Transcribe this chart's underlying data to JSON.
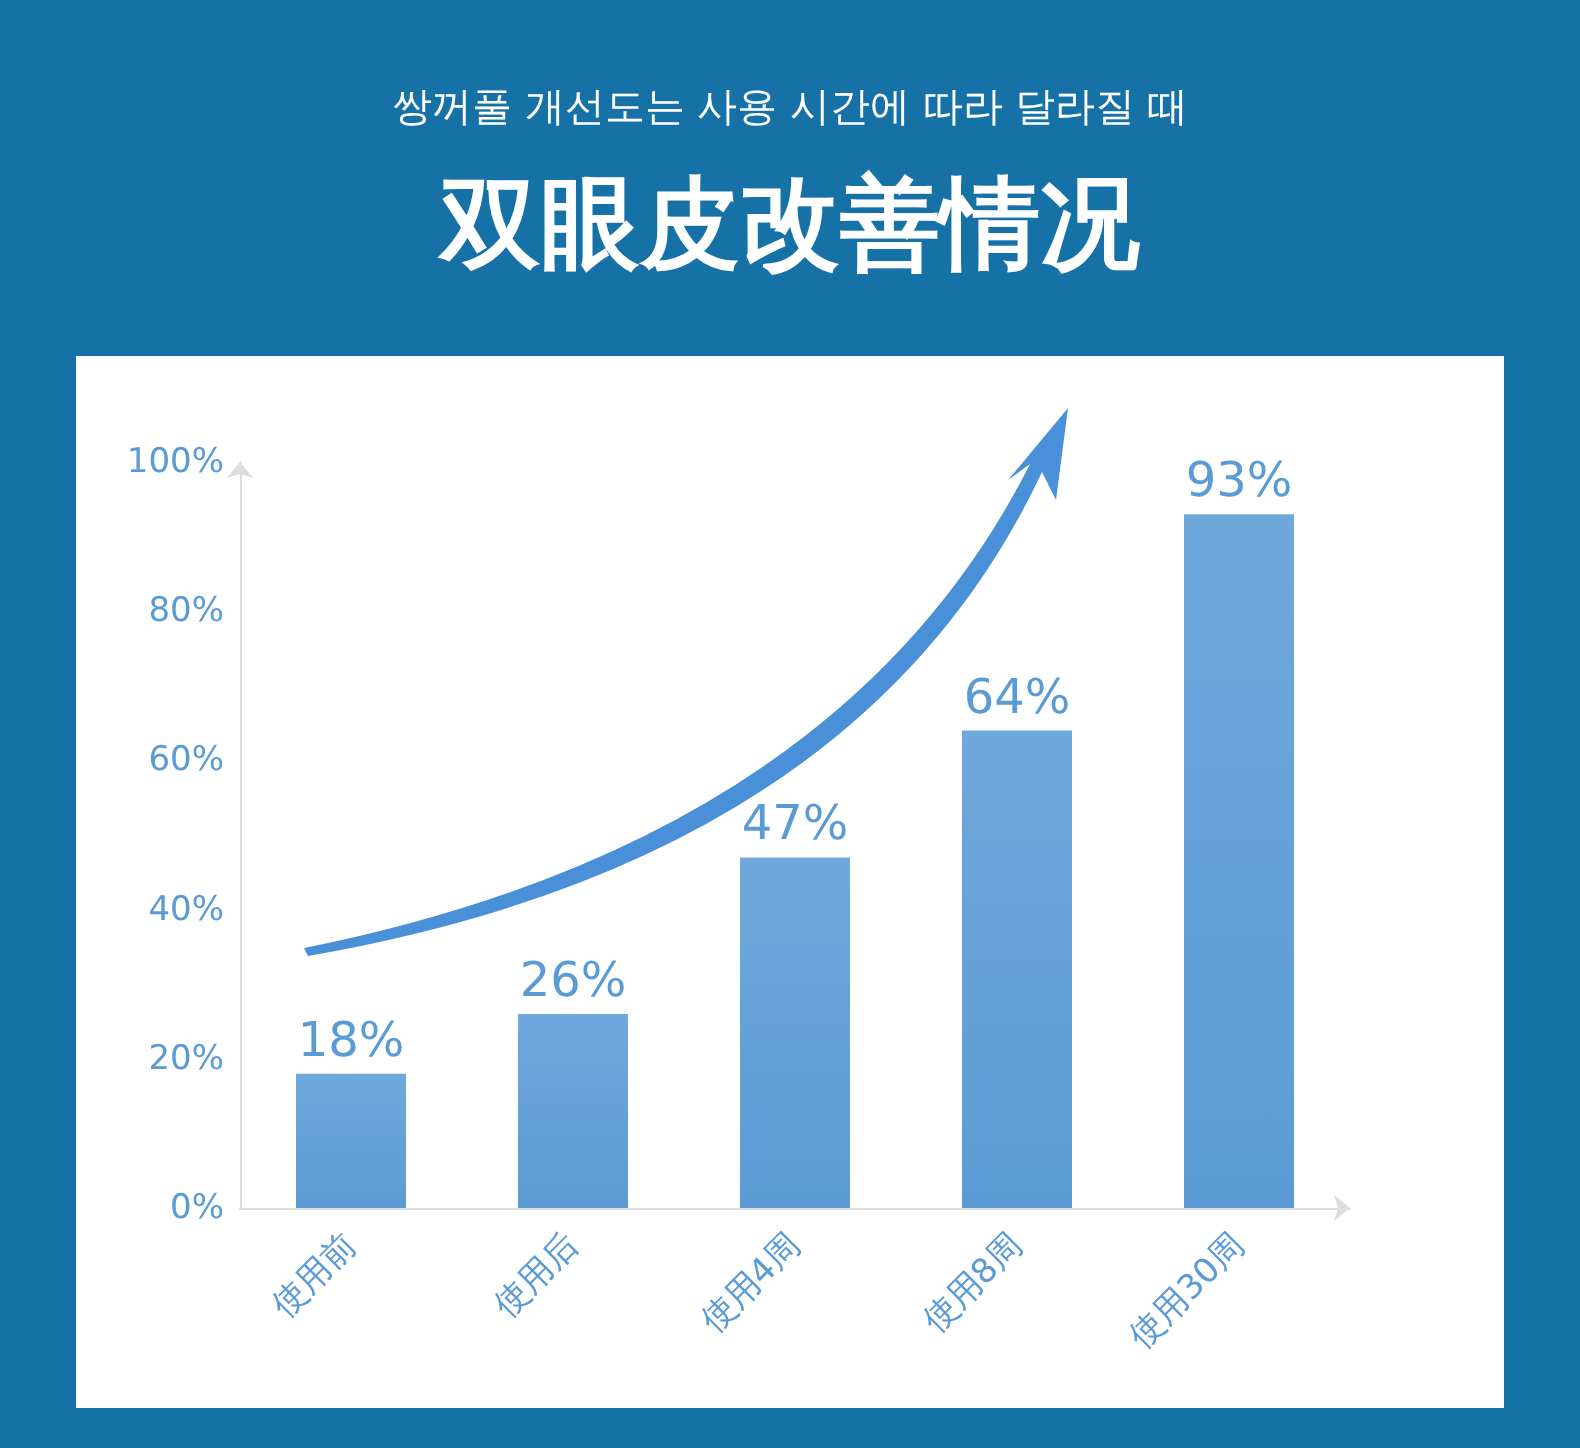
{
  "chart_data": {
    "type": "bar",
    "subtitle": "쌍꺼풀 개선도는 사용 시간에 따라 달라질 때",
    "title": "双眼皮改善情况",
    "categories": [
      "使用前",
      "使用后",
      "使用4周",
      "使用8周",
      "使用30周"
    ],
    "values": [
      18,
      26,
      47,
      64,
      93
    ],
    "value_labels": [
      "18%",
      "26%",
      "47%",
      "64%",
      "93%"
    ],
    "color": "#5b9bd5",
    "ylim": [
      0,
      100
    ],
    "yticks": [
      {
        "value": 0,
        "label": "0%"
      },
      {
        "value": 20,
        "label": "20%"
      },
      {
        "value": 40,
        "label": "40%"
      },
      {
        "value": 60,
        "label": "60%"
      },
      {
        "value": 80,
        "label": "80%"
      },
      {
        "value": 100,
        "label": "100%"
      }
    ],
    "grid": false
  }
}
